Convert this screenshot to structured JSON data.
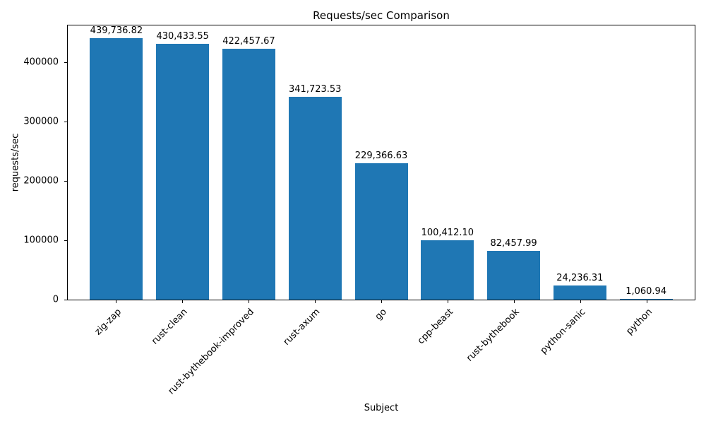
{
  "chart_data": {
    "type": "bar",
    "title": "Requests/sec Comparison",
    "xlabel": "Subject",
    "ylabel": "requests/sec",
    "categories": [
      "zig-zap",
      "rust-clean",
      "rust-bythebook-improved",
      "rust-axum",
      "go",
      "cpp-beast",
      "rust-bythebook",
      "python-sanic",
      "python"
    ],
    "values": [
      439736.82,
      430433.55,
      422457.67,
      341723.53,
      229366.63,
      100412.1,
      82457.99,
      24236.31,
      1060.94
    ],
    "value_labels": [
      "439,736.82",
      "430,433.55",
      "422,457.67",
      "341,723.53",
      "229,366.63",
      "100,412.10",
      "82,457.99",
      "24,236.31",
      "1,060.94"
    ],
    "yticks": [
      0,
      100000,
      200000,
      300000,
      400000
    ],
    "ytick_labels": [
      "0",
      "100000",
      "200000",
      "300000",
      "400000"
    ],
    "ylim": [
      0,
      461723.66
    ],
    "bar_color": "#1f77b4",
    "background_color": "#ffffff",
    "grid": false,
    "legend": null
  }
}
